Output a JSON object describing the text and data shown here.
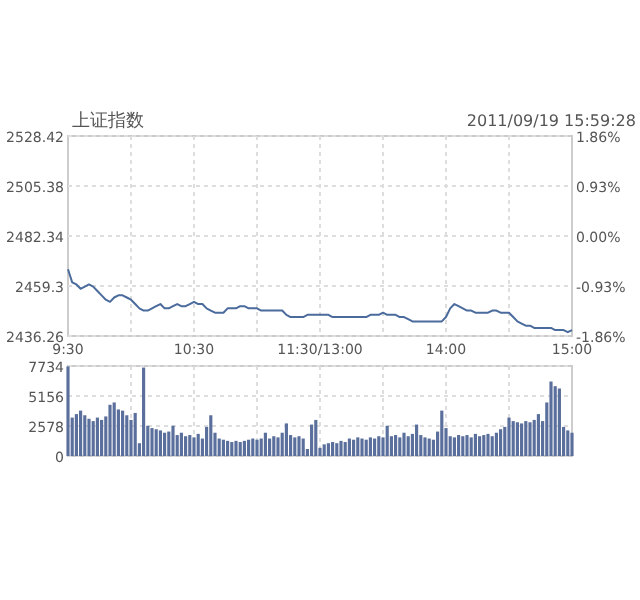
{
  "chart_data": [
    {
      "type": "line",
      "title": "上证指数",
      "subtitle": "2011/09/19 15:59:28",
      "grid": true,
      "marker": "none",
      "line_style": "solid",
      "categories": [
        "9:30",
        null,
        null,
        null,
        null,
        null,
        null,
        null,
        null,
        null,
        null,
        null,
        null,
        null,
        null,
        null,
        null,
        null,
        null,
        null,
        null,
        null,
        null,
        null,
        null,
        null,
        null,
        null,
        null,
        null,
        "10:30",
        null,
        null,
        null,
        null,
        null,
        null,
        null,
        null,
        null,
        null,
        null,
        null,
        null,
        null,
        null,
        null,
        null,
        null,
        null,
        null,
        null,
        null,
        null,
        null,
        null,
        null,
        null,
        null,
        null,
        "11:30/13:00",
        null,
        null,
        null,
        null,
        null,
        null,
        null,
        null,
        null,
        null,
        null,
        null,
        null,
        null,
        null,
        null,
        null,
        null,
        null,
        null,
        null,
        null,
        null,
        null,
        null,
        null,
        null,
        null,
        null,
        "14:00",
        null,
        null,
        null,
        null,
        null,
        null,
        null,
        null,
        null,
        null,
        null,
        null,
        null,
        null,
        null,
        null,
        null,
        null,
        null,
        null,
        null,
        null,
        null,
        null,
        null,
        null,
        null,
        null,
        null,
        "15:00"
      ],
      "ylim": [
        2436.26,
        2528.42
      ],
      "yticks": [
        2436.26,
        2459.3,
        2482.34,
        2505.38,
        2528.42
      ],
      "y2lim": [
        -1.86,
        1.86
      ],
      "y2ticks": [
        {
          "value": -1.86,
          "label": "-1.86%"
        },
        {
          "value": -0.93,
          "label": "-0.93%"
        },
        {
          "value": 0,
          "label": "0.00%"
        },
        {
          "value": 0.93,
          "label": "0.93%"
        },
        {
          "value": 1.86,
          "label": "1.86%"
        }
      ],
      "series": [
        {
          "color": "#4a6b9c",
          "values": [
            2467,
            2461,
            2460,
            2458,
            2459,
            2460,
            2459,
            2457,
            2455,
            2453,
            2452,
            2454,
            2455,
            2455,
            2454,
            2453,
            2451,
            2449,
            2448,
            2448,
            2449,
            2450,
            2451,
            2449,
            2449,
            2450,
            2451,
            2450,
            2450,
            2451,
            2452,
            2451,
            2451,
            2449,
            2448,
            2447,
            2447,
            2447,
            2449,
            2449,
            2449,
            2450,
            2450,
            2449,
            2449,
            2449,
            2448,
            2448,
            2448,
            2448,
            2448,
            2448,
            2446,
            2445,
            2445,
            2445,
            2445,
            2446,
            2446,
            2446,
            2446,
            2446,
            2446,
            2445,
            2445,
            2445,
            2445,
            2445,
            2445,
            2445,
            2445,
            2445,
            2446,
            2446,
            2446,
            2447,
            2446,
            2446,
            2446,
            2445,
            2445,
            2444,
            2443,
            2443,
            2443,
            2443,
            2443,
            2443,
            2443,
            2443,
            2445,
            2449,
            2451,
            2450,
            2449,
            2448,
            2448,
            2447,
            2447,
            2447,
            2447,
            2448,
            2448,
            2447,
            2447,
            2447,
            2445,
            2443,
            2442,
            2441,
            2441,
            2440,
            2440,
            2440,
            2440,
            2440,
            2439,
            2439,
            2439,
            2438,
            2439
          ]
        }
      ]
    },
    {
      "type": "bar",
      "grid": true,
      "categories": [
        null,
        null,
        null,
        null,
        null,
        null,
        null,
        null,
        null,
        null,
        null,
        null,
        null,
        null,
        null,
        null,
        null,
        null,
        null,
        null,
        null,
        null,
        null,
        null,
        null,
        null,
        null,
        null,
        null,
        null,
        null,
        null,
        null,
        null,
        null,
        null,
        null,
        null,
        null,
        null,
        null,
        null,
        null,
        null,
        null,
        null,
        null,
        null,
        null,
        null,
        null,
        null,
        null,
        null,
        null,
        null,
        null,
        null,
        null,
        null,
        null,
        null,
        null,
        null,
        null,
        null,
        null,
        null,
        null,
        null,
        null,
        null,
        null,
        null,
        null,
        null,
        null,
        null,
        null,
        null,
        null,
        null,
        null,
        null,
        null,
        null,
        null,
        null,
        null,
        null,
        null,
        null,
        null,
        null,
        null,
        null,
        null,
        null,
        null,
        null,
        null,
        null,
        null,
        null,
        null,
        null,
        null,
        null,
        null,
        null,
        null,
        null,
        null,
        null,
        null,
        null,
        null,
        null,
        null,
        null,
        null
      ],
      "ylim": [
        0,
        7734
      ],
      "yticks": [
        0,
        2578,
        5156,
        7734
      ],
      "series": [
        {
          "color": "#5a6f9c",
          "values": [
            7700,
            3300,
            3600,
            3900,
            3500,
            3200,
            3000,
            3300,
            3100,
            3400,
            4400,
            4600,
            4000,
            3900,
            3500,
            3100,
            3700,
            1100,
            7600,
            2600,
            2400,
            2300,
            2200,
            2000,
            2100,
            2600,
            1800,
            2000,
            1700,
            1800,
            1600,
            1900,
            1500,
            2500,
            3500,
            2000,
            1500,
            1400,
            1300,
            1200,
            1300,
            1200,
            1300,
            1400,
            1500,
            1400,
            1500,
            2000,
            1500,
            1700,
            1600,
            2000,
            2800,
            1800,
            1600,
            1700,
            1500,
            600,
            2700,
            3100,
            700,
            1000,
            1100,
            1200,
            1100,
            1300,
            1200,
            1500,
            1400,
            1600,
            1500,
            1400,
            1600,
            1500,
            1700,
            1600,
            2600,
            1700,
            1800,
            1600,
            2000,
            1700,
            1900,
            2700,
            1800,
            1600,
            1500,
            1400,
            2100,
            3900,
            2400,
            1700,
            1600,
            1800,
            1700,
            1800,
            1600,
            1900,
            1700,
            1800,
            1900,
            1700,
            2000,
            2300,
            2500,
            3300,
            3000,
            2900,
            2800,
            3000,
            2900,
            3100,
            3600,
            3000,
            4600,
            6400,
            6000,
            5800,
            2500,
            2200,
            2000
          ]
        }
      ]
    }
  ]
}
